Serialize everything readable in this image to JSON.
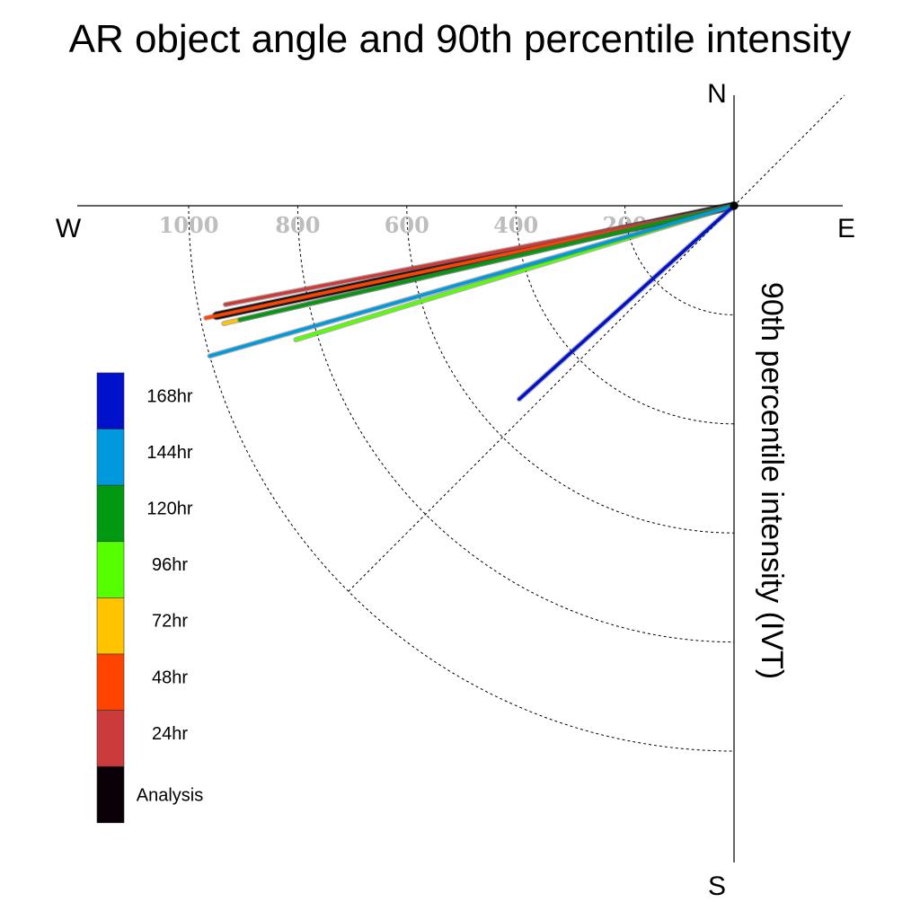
{
  "chart_data": {
    "type": "polar-vector",
    "title": "AR object angle and 90th percentile intensity",
    "radial_label": "90th percentile intensity (IVT)",
    "directions": {
      "north": "N",
      "south": "S",
      "east": "E",
      "west": "W"
    },
    "radial_ticks": [
      200,
      400,
      600,
      800,
      1000
    ],
    "radial_tick_labels": [
      "200",
      "400",
      "600",
      "800",
      "1000"
    ],
    "rmax": 1000,
    "series": [
      {
        "name": "168hr",
        "color": "#0011cc",
        "angle_deg": 222,
        "intensity": 530
      },
      {
        "name": "144hr",
        "color": "#0099dd",
        "angle_deg": 196,
        "intensity": 1000
      },
      {
        "name": "120hr",
        "color": "#009911",
        "angle_deg": 193,
        "intensity": 930
      },
      {
        "name": "96hr",
        "color": "#55ff00",
        "angle_deg": 197,
        "intensity": 840
      },
      {
        "name": "72hr",
        "color": "#ffc300",
        "angle_deg": 193,
        "intensity": 960
      },
      {
        "name": "48hr",
        "color": "#ff4400",
        "angle_deg": 192,
        "intensity": 990
      },
      {
        "name": "24hr",
        "color": "#cc3b3b",
        "angle_deg": 191,
        "intensity": 950
      },
      {
        "name": "Analysis",
        "color": "#0a0008",
        "angle_deg": 192,
        "intensity": 970
      }
    ],
    "legend_order": [
      "168hr",
      "144hr",
      "120hr",
      "96hr",
      "72hr",
      "48hr",
      "24hr",
      "Analysis"
    ],
    "legend_placement": "left"
  }
}
